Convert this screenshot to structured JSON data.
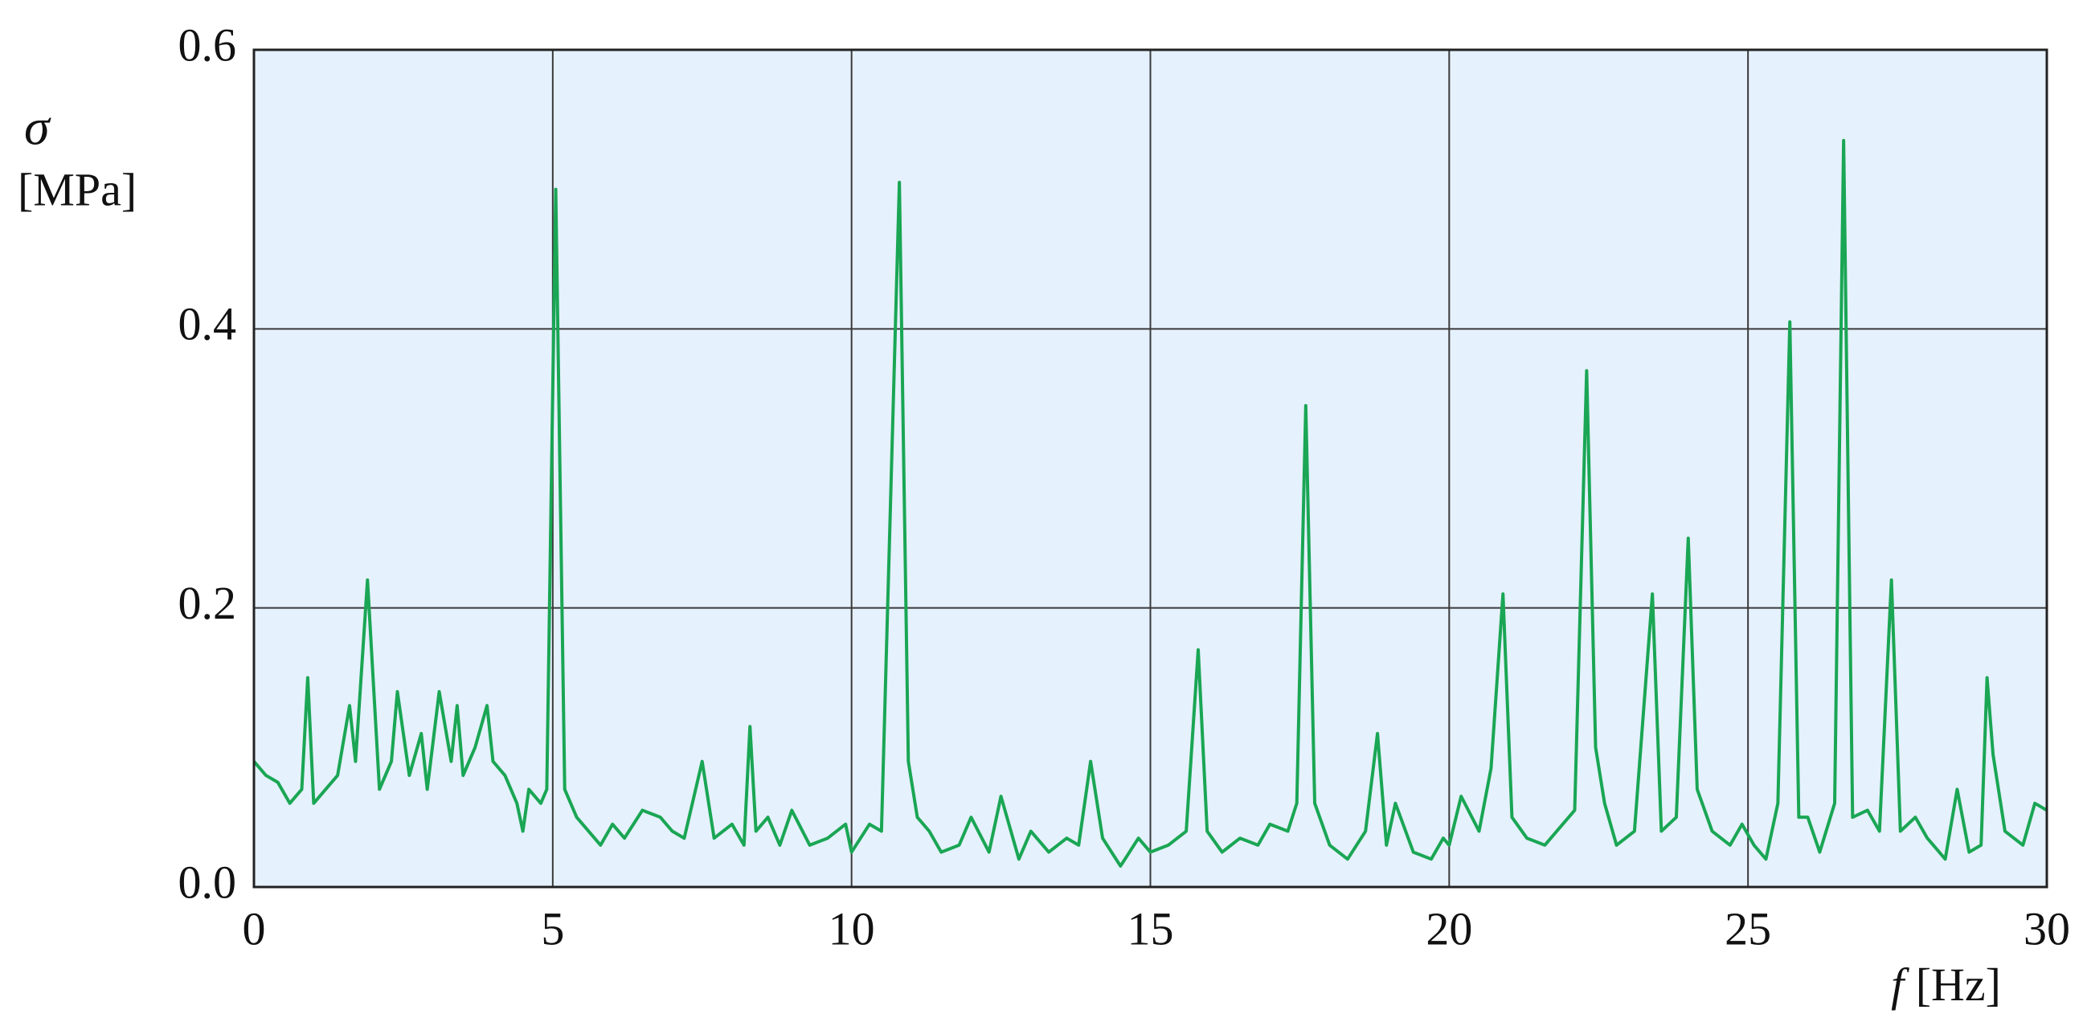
{
  "chart_data": {
    "type": "line",
    "y_label_symbol": "σ",
    "y_label_unit": "[MPa]",
    "x_label_symbol": "f",
    "x_label_unit": "[Hz]",
    "xlim": [
      0,
      30
    ],
    "xticks": [
      0,
      5,
      10,
      15,
      20,
      25,
      30
    ],
    "ylim": [
      0,
      0.6
    ],
    "yticks": [
      {
        "value": 0,
        "label": "0.0"
      },
      0.2,
      0.4,
      0.6
    ],
    "grid": true,
    "background": "#e5f1fd",
    "grid_color": "#3a3a3a",
    "series": [
      {
        "color": "#1aa654",
        "x": [
          0,
          0.2,
          0.4,
          0.6,
          0.8,
          0.9,
          1.0,
          1.2,
          1.4,
          1.6,
          1.7,
          1.9,
          2.1,
          2.3,
          2.4,
          2.6,
          2.8,
          2.9,
          3.1,
          3.3,
          3.4,
          3.5,
          3.7,
          3.9,
          4.0,
          4.2,
          4.4,
          4.5,
          4.6,
          4.8,
          4.9,
          5.05,
          5.2,
          5.4,
          5.6,
          5.8,
          6.0,
          6.2,
          6.5,
          6.8,
          7.0,
          7.2,
          7.5,
          7.7,
          8.0,
          8.2,
          8.3,
          8.4,
          8.6,
          8.8,
          9.0,
          9.3,
          9.6,
          9.9,
          10.0,
          10.3,
          10.5,
          10.8,
          10.95,
          11.1,
          11.3,
          11.5,
          11.8,
          12.0,
          12.3,
          12.5,
          12.8,
          13.0,
          13.3,
          13.6,
          13.8,
          14.0,
          14.2,
          14.5,
          14.8,
          15.0,
          15.3,
          15.6,
          15.8,
          15.95,
          16.2,
          16.5,
          16.8,
          17.0,
          17.3,
          17.45,
          17.6,
          17.75,
          18.0,
          18.3,
          18.6,
          18.8,
          18.95,
          19.1,
          19.4,
          19.7,
          19.9,
          20.0,
          20.2,
          20.5,
          20.7,
          20.9,
          21.05,
          21.3,
          21.6,
          21.9,
          22.1,
          22.3,
          22.45,
          22.6,
          22.8,
          23.1,
          23.4,
          23.55,
          23.8,
          24.0,
          24.15,
          24.4,
          24.7,
          24.9,
          25.1,
          25.3,
          25.5,
          25.7,
          25.85,
          26.0,
          26.2,
          26.45,
          26.6,
          26.75,
          27.0,
          27.2,
          27.4,
          27.55,
          27.8,
          28.0,
          28.3,
          28.5,
          28.7,
          28.9,
          29.0,
          29.1,
          29.3,
          29.6,
          29.8,
          30.0
        ],
        "values": [
          0.09,
          0.08,
          0.075,
          0.06,
          0.07,
          0.15,
          0.06,
          0.07,
          0.08,
          0.13,
          0.09,
          0.22,
          0.07,
          0.09,
          0.14,
          0.08,
          0.11,
          0.07,
          0.14,
          0.09,
          0.13,
          0.08,
          0.1,
          0.13,
          0.09,
          0.08,
          0.06,
          0.04,
          0.07,
          0.06,
          0.07,
          0.5,
          0.07,
          0.05,
          0.04,
          0.03,
          0.045,
          0.035,
          0.055,
          0.05,
          0.04,
          0.035,
          0.09,
          0.035,
          0.045,
          0.03,
          0.115,
          0.04,
          0.05,
          0.03,
          0.055,
          0.03,
          0.035,
          0.045,
          0.025,
          0.045,
          0.04,
          0.505,
          0.09,
          0.05,
          0.04,
          0.025,
          0.03,
          0.05,
          0.025,
          0.065,
          0.02,
          0.04,
          0.025,
          0.035,
          0.03,
          0.09,
          0.035,
          0.015,
          0.035,
          0.025,
          0.03,
          0.04,
          0.17,
          0.04,
          0.025,
          0.035,
          0.03,
          0.045,
          0.04,
          0.06,
          0.345,
          0.06,
          0.03,
          0.02,
          0.04,
          0.11,
          0.03,
          0.06,
          0.025,
          0.02,
          0.035,
          0.03,
          0.065,
          0.04,
          0.085,
          0.21,
          0.05,
          0.035,
          0.03,
          0.045,
          0.055,
          0.37,
          0.1,
          0.06,
          0.03,
          0.04,
          0.21,
          0.04,
          0.05,
          0.25,
          0.07,
          0.04,
          0.03,
          0.045,
          0.03,
          0.02,
          0.06,
          0.405,
          0.05,
          0.05,
          0.025,
          0.06,
          0.535,
          0.05,
          0.055,
          0.04,
          0.22,
          0.04,
          0.05,
          0.035,
          0.02,
          0.07,
          0.025,
          0.03,
          0.15,
          0.095,
          0.04,
          0.03,
          0.06,
          0.055
        ]
      }
    ]
  }
}
